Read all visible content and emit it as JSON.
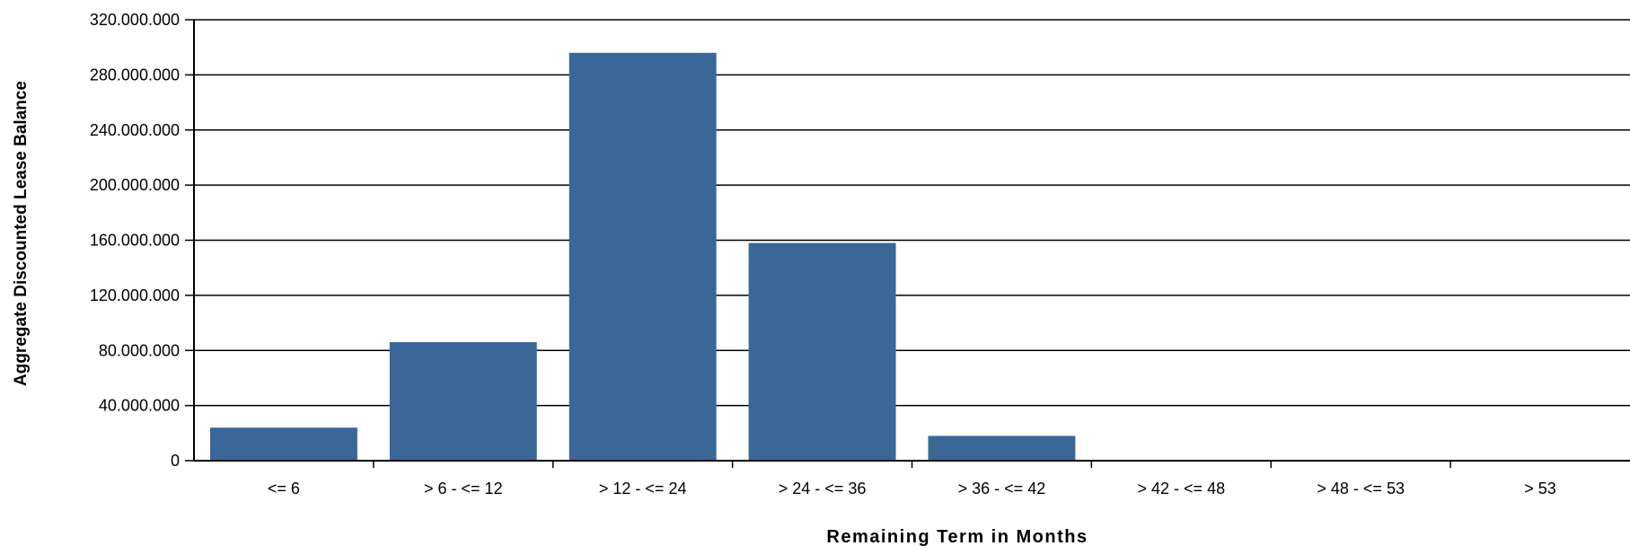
{
  "chart_data": {
    "type": "bar",
    "title": "",
    "xlabel": "Remaining Term in Months",
    "ylabel": "Aggregate Discounted Lease Balance",
    "categories": [
      "<= 6",
      "> 6 - <= 12",
      "> 12 - <= 24",
      "> 24 - <= 36",
      "> 36 - <= 42",
      "> 42 - <= 48",
      "> 48 - <= 53",
      "> 53"
    ],
    "values": [
      24000000,
      86000000,
      296000000,
      158000000,
      18000000,
      0,
      0,
      0
    ],
    "ylim": [
      0,
      320000000
    ],
    "yticks": [
      0,
      40000000,
      80000000,
      120000000,
      160000000,
      200000000,
      240000000,
      280000000,
      320000000
    ],
    "ytick_labels": [
      "0",
      "40.000.000",
      "80.000.000",
      "120.000.000",
      "160.000.000",
      "200.000.000",
      "240.000.000",
      "280.000.000",
      "320.000.000"
    ],
    "grid": true,
    "bar_color": "#3b6798"
  }
}
